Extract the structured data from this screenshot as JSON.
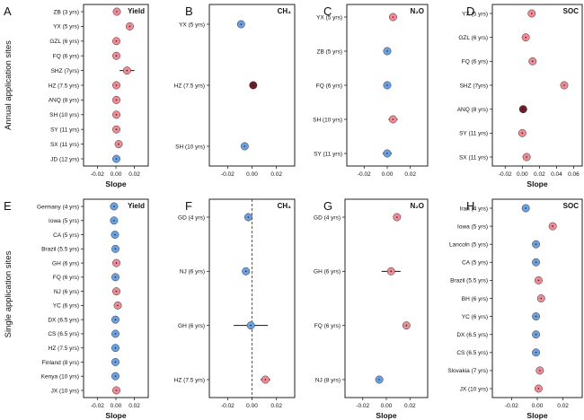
{
  "figure": {
    "row_labels": [
      "Annual application sites",
      "Single application sites"
    ],
    "colors": {
      "positive": "#f08a95",
      "negative": "#6aa0e6",
      "dark": "#6e1e28",
      "outline": "#333333"
    }
  },
  "chart_data": [
    {
      "id": "A",
      "type": "scatter",
      "title": "Yield",
      "xlabel": "Slope",
      "xlim": [
        -0.035,
        0.035
      ],
      "xticks": [
        -0.02,
        0,
        0.02
      ],
      "tick_labels": [
        "-0.02",
        "0.00",
        "0.02"
      ],
      "zero_line": false,
      "categories": [
        "ZB (3 yrs)",
        "YX (5 yrs)",
        "GZL (6 yrs)",
        "FQ (6 yrs)",
        "SHZ (7yrs)",
        "HZ (7.5 yrs)",
        "ANQ (8 yrs)",
        "SH (10 yrs)",
        "SY (11 yrs)",
        "SX (11 yrs)",
        "JD (12 yrs)"
      ],
      "values": [
        0.001,
        0.015,
        0.0005,
        0.0005,
        0.012,
        0.0005,
        0.0005,
        0.0005,
        0.0005,
        0.003,
        0.0005
      ],
      "err": [
        0.001,
        0.004,
        0.001,
        0.001,
        0.008,
        0.001,
        0.001,
        0.001,
        0.001,
        0.002,
        0.001
      ],
      "marker_color": [
        "pos",
        "pos",
        "pos",
        "pos",
        "pos",
        "pos",
        "pos",
        "pos",
        "pos",
        "pos",
        "neg"
      ]
    },
    {
      "id": "B",
      "type": "scatter",
      "title": "CH₄",
      "xlabel": "",
      "xlim": [
        -0.035,
        0.035
      ],
      "xticks": [
        -0.02,
        0,
        0.02
      ],
      "tick_labels": [
        "-0.02",
        "0.00",
        "0.02"
      ],
      "zero_line": false,
      "categories": [
        "YX (5 yrs)",
        "HZ (7.5 yrs)",
        "SH (10 yrs)"
      ],
      "values": [
        -0.009,
        0.001,
        -0.006
      ],
      "err": [
        0.002,
        0.002,
        0.003
      ],
      "marker_color": [
        "neg",
        "dark",
        "neg"
      ]
    },
    {
      "id": "C",
      "type": "scatter",
      "title": "N₂O",
      "xlabel": "",
      "xlim": [
        -0.035,
        0.035
      ],
      "xticks": [
        -0.02,
        0,
        0.02
      ],
      "tick_labels": [
        "-0.02",
        "0.00",
        "0.02"
      ],
      "zero_line": false,
      "categories": [
        "YX (5 yrs)",
        "ZB (5 yrs)",
        "FQ (6 yrs)",
        "SH (10 yrs)",
        "SY (11 yrs)"
      ],
      "values": [
        0.005,
        0.0,
        0.0,
        0.005,
        0.0
      ],
      "err": [
        0.002,
        0.002,
        0.002,
        0.004,
        0.004
      ],
      "marker_color": [
        "pos",
        "neg",
        "neg",
        "pos",
        "neg"
      ]
    },
    {
      "id": "D",
      "type": "scatter",
      "title": "SOC",
      "xlabel": "Slope",
      "xlim": [
        -0.035,
        0.07
      ],
      "xticks": [
        -0.02,
        0,
        0.02,
        0.04,
        0.06
      ],
      "tick_labels": [
        "-0.02",
        "0.00",
        "0.02",
        "0.04",
        "0.06"
      ],
      "zero_line": false,
      "categories": [
        "YX (5 yrs)",
        "GZL (6 yrs)",
        "FQ (6 yrs)",
        "SHZ (7yrs)",
        "ANQ (8 yrs)",
        "SY (11 yrs)",
        "SX (11 yrs)"
      ],
      "values": [
        0.011,
        0.004,
        0.012,
        0.049,
        0.001,
        0.0,
        0.005
      ],
      "err": [
        0.002,
        0.002,
        0.002,
        0.003,
        0.002,
        0.002,
        0.002
      ],
      "marker_color": [
        "pos",
        "pos",
        "pos",
        "pos",
        "dark",
        "pos",
        "pos"
      ]
    },
    {
      "id": "E",
      "type": "scatter",
      "title": "Yield",
      "xlabel": "Slope",
      "xlim": [
        -0.035,
        0.035
      ],
      "xticks": [
        -0.02,
        0,
        0.02
      ],
      "tick_labels": [
        "-0.02",
        "0.00",
        "0.02"
      ],
      "zero_line": false,
      "categories": [
        "Germany (4 yrs)",
        "Iowa (5 yrs)",
        "CA (5 yrs)",
        "Brazil (5.5 yrs)",
        "GH (6 yrs)",
        "FQ (6 yrs)",
        "NJ (6 yrs)",
        "YC (6 yrs)",
        "DX (6.5 yrs)",
        "CS (6.5 yrs)",
        "HZ (7.5 yrs)",
        "Finland (8 yrs)",
        "Kenya (10 yrs)",
        "JX (10 yrs)"
      ],
      "values": [
        -0.002,
        -0.002,
        -0.001,
        -0.0005,
        0.0005,
        -0.0005,
        0.0005,
        0.002,
        -0.0005,
        -0.0005,
        -0.0005,
        -0.0005,
        -0.0005,
        0.0005
      ],
      "err": [
        0.001,
        0.001,
        0.001,
        0.001,
        0.001,
        0.001,
        0.001,
        0.001,
        0.001,
        0.001,
        0.001,
        0.001,
        0.001,
        0.001
      ],
      "marker_color": [
        "neg",
        "neg",
        "neg",
        "neg",
        "pos",
        "neg",
        "pos",
        "pos",
        "neg",
        "neg",
        "neg",
        "neg",
        "neg",
        "pos"
      ]
    },
    {
      "id": "F",
      "type": "scatter",
      "title": "CH₄",
      "xlabel": "",
      "xlim": [
        -0.035,
        0.035
      ],
      "xticks": [
        -0.02,
        0,
        0.02
      ],
      "tick_labels": [
        "-0.02",
        "0.00",
        "0.02"
      ],
      "zero_line": true,
      "categories": [
        "GD (4 yrs)",
        "NJ (6 yrs)",
        "GH (6 yrs)",
        "HZ (7.5 yrs)"
      ],
      "values": [
        -0.003,
        -0.005,
        -0.001,
        0.011
      ],
      "err": [
        0.002,
        0.003,
        0.014,
        0.004
      ],
      "marker_color": [
        "neg",
        "neg",
        "neg",
        "pos"
      ]
    },
    {
      "id": "G",
      "type": "scatter",
      "title": "N₂O",
      "xlabel": "Slope",
      "xlim": [
        -0.035,
        0.035
      ],
      "xticks": [
        -0.02,
        0,
        0.02
      ],
      "tick_labels": [
        "-0.02",
        "0.00",
        "0.02"
      ],
      "zero_line": false,
      "categories": [
        "GD (4 yrs)",
        "GH (6 yrs)",
        "FQ (6 yrs)",
        "NJ (8 yrs)"
      ],
      "values": [
        0.009,
        0.004,
        0.017,
        -0.006
      ],
      "err": [
        0.002,
        0.008,
        0.003,
        0.002
      ],
      "marker_color": [
        "pos",
        "pos",
        "pos",
        "neg"
      ]
    },
    {
      "id": "H",
      "type": "scatter",
      "title": "SOC",
      "xlabel": "Slope",
      "xlim": [
        -0.035,
        0.035
      ],
      "xticks": [
        -0.02,
        0,
        0.02
      ],
      "tick_labels": [
        "-0.02",
        "0.00",
        "0.02"
      ],
      "zero_line": false,
      "categories": [
        "Iran (4 yrs)",
        "Iowa (5 yrs)",
        "Lancoln (5 yrs)",
        "CA (5 yrs)",
        "Brazil (5.5 yrs)",
        "BH (6 yrs)",
        "YC (6 yrs)",
        "DX (6.5 yrs)",
        "CS (6.5 yrs)",
        "Slovakia (7 yrs)",
        "JX (10 yrs)"
      ],
      "values": [
        -0.009,
        0.012,
        -0.001,
        -0.001,
        0.001,
        0.003,
        -0.001,
        -0.001,
        -0.001,
        0.002,
        0.001
      ],
      "err": [
        0.002,
        0.002,
        0.001,
        0.001,
        0.001,
        0.001,
        0.001,
        0.001,
        0.001,
        0.001,
        0.001
      ],
      "marker_color": [
        "neg",
        "pos",
        "neg",
        "neg",
        "pos",
        "pos",
        "neg",
        "neg",
        "neg",
        "pos",
        "pos"
      ]
    }
  ]
}
